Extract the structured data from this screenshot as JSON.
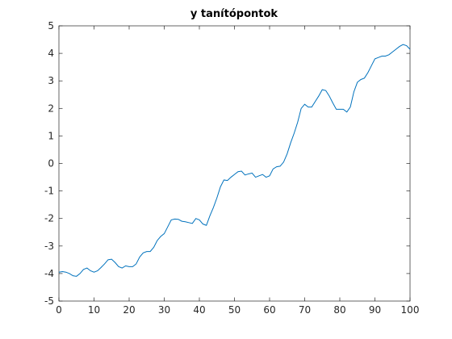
{
  "chart_data": {
    "type": "line",
    "title": "y tanítópontok",
    "x": [
      0,
      1,
      2,
      3,
      4,
      5,
      6,
      7,
      8,
      9,
      10,
      11,
      12,
      13,
      14,
      15,
      16,
      17,
      18,
      19,
      20,
      21,
      22,
      23,
      24,
      25,
      26,
      27,
      28,
      29,
      30,
      31,
      32,
      33,
      34,
      35,
      36,
      37,
      38,
      39,
      40,
      41,
      42,
      43,
      44,
      45,
      46,
      47,
      48,
      49,
      50,
      51,
      52,
      53,
      54,
      55,
      56,
      57,
      58,
      59,
      60,
      61,
      62,
      63,
      64,
      65,
      66,
      67,
      68,
      69,
      70,
      71,
      72,
      73,
      74,
      75,
      76,
      77,
      78,
      79,
      80,
      81,
      82,
      83,
      84,
      85,
      86,
      87,
      88,
      89,
      90,
      91,
      92,
      93,
      94,
      95,
      96,
      97,
      98,
      99,
      100
    ],
    "series": [
      {
        "color": "#0072bd",
        "values": [
          -3.95,
          -3.93,
          -3.95,
          -4.0,
          -4.08,
          -4.1,
          -4.0,
          -3.85,
          -3.8,
          -3.9,
          -3.95,
          -3.9,
          -3.78,
          -3.65,
          -3.5,
          -3.48,
          -3.6,
          -3.75,
          -3.8,
          -3.72,
          -3.75,
          -3.75,
          -3.65,
          -3.4,
          -3.25,
          -3.2,
          -3.2,
          -3.05,
          -2.8,
          -2.65,
          -2.55,
          -2.3,
          -2.05,
          -2.02,
          -2.03,
          -2.1,
          -2.12,
          -2.15,
          -2.18,
          -2.0,
          -2.05,
          -2.2,
          -2.25,
          -1.9,
          -1.6,
          -1.25,
          -0.85,
          -0.6,
          -0.62,
          -0.5,
          -0.4,
          -0.3,
          -0.28,
          -0.42,
          -0.38,
          -0.35,
          -0.5,
          -0.45,
          -0.4,
          -0.5,
          -0.45,
          -0.2,
          -0.12,
          -0.1,
          0.05,
          0.35,
          0.75,
          1.1,
          1.5,
          2.0,
          2.15,
          2.05,
          2.05,
          2.25,
          2.45,
          2.68,
          2.65,
          2.45,
          2.2,
          1.97,
          1.97,
          1.97,
          1.87,
          2.05,
          2.6,
          2.95,
          3.05,
          3.1,
          3.3,
          3.55,
          3.8,
          3.85,
          3.9,
          3.9,
          3.95,
          4.05,
          4.15,
          4.25,
          4.32,
          4.28,
          4.15
        ]
      }
    ],
    "xlim": [
      0,
      100
    ],
    "xticks": [
      0,
      10,
      20,
      30,
      40,
      50,
      60,
      70,
      80,
      90,
      100
    ],
    "ylim": [
      -5,
      5
    ],
    "yticks": [
      -5,
      -4,
      -3,
      -2,
      -1,
      0,
      1,
      2,
      3,
      4,
      5
    ],
    "grid": false
  }
}
